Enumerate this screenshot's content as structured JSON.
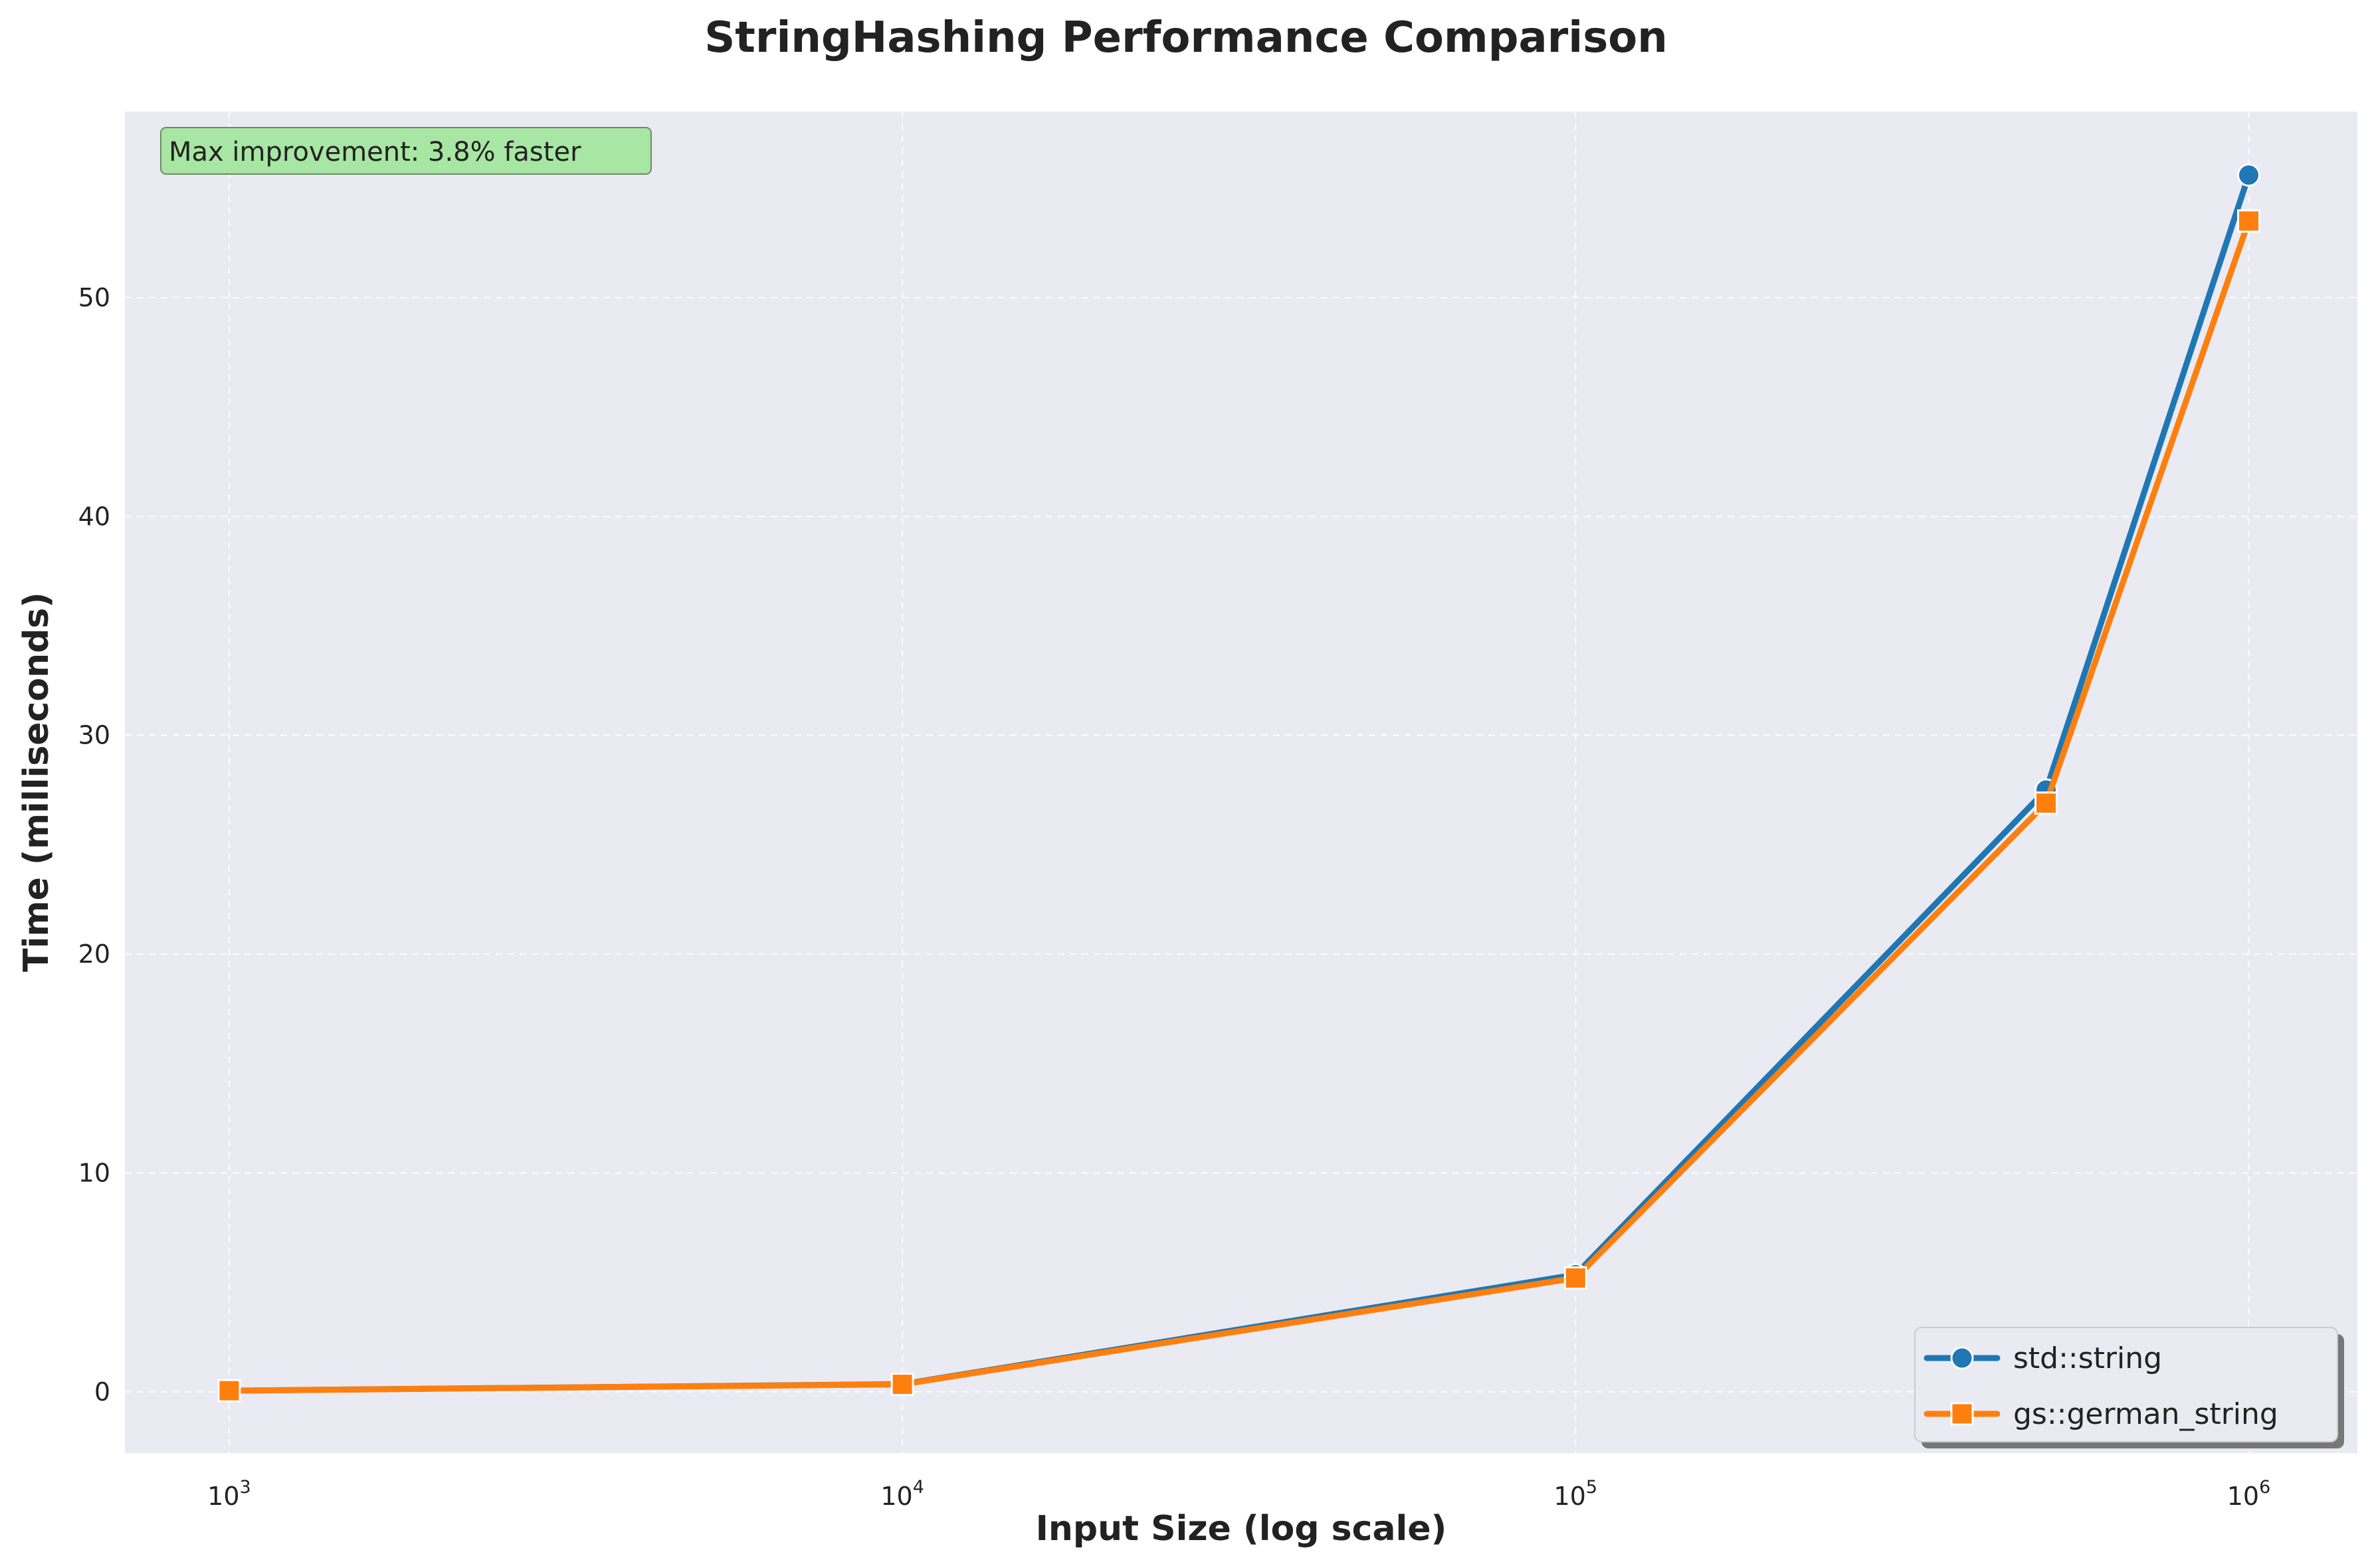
{
  "chart_data": {
    "type": "line",
    "title": "StringHashing Performance Comparison",
    "xlabel": "Input Size (log scale)",
    "ylabel": "Time (milliseconds)",
    "xscale": "log",
    "xlim": [
      700,
      1450000
    ],
    "ylim": [
      -2.8,
      58.5
    ],
    "x_ticks": [
      {
        "value": 1000,
        "base": "10",
        "exp": "3"
      },
      {
        "value": 10000,
        "base": "10",
        "exp": "4"
      },
      {
        "value": 100000,
        "base": "10",
        "exp": "5"
      },
      {
        "value": 1000000,
        "base": "10",
        "exp": "6"
      }
    ],
    "y_ticks": [
      0,
      10,
      20,
      30,
      40,
      50
    ],
    "x": [
      1000,
      10000,
      100000,
      500000,
      1000000
    ],
    "series": [
      {
        "name": "std::string",
        "values": [
          0.05,
          0.35,
          5.35,
          27.5,
          55.6
        ],
        "color": "#1f77b4",
        "marker": "circle"
      },
      {
        "name": "gs::german_string",
        "values": [
          0.05,
          0.34,
          5.2,
          26.9,
          53.5
        ],
        "color": "#ff7f0e",
        "marker": "square"
      }
    ],
    "annotation": "Max improvement: 3.8% faster",
    "annotation_position": "top-left",
    "legend_position": "lower-right",
    "grid": true,
    "background_color": "#eaeaf2",
    "annotation_color": "#a8e6a3"
  }
}
